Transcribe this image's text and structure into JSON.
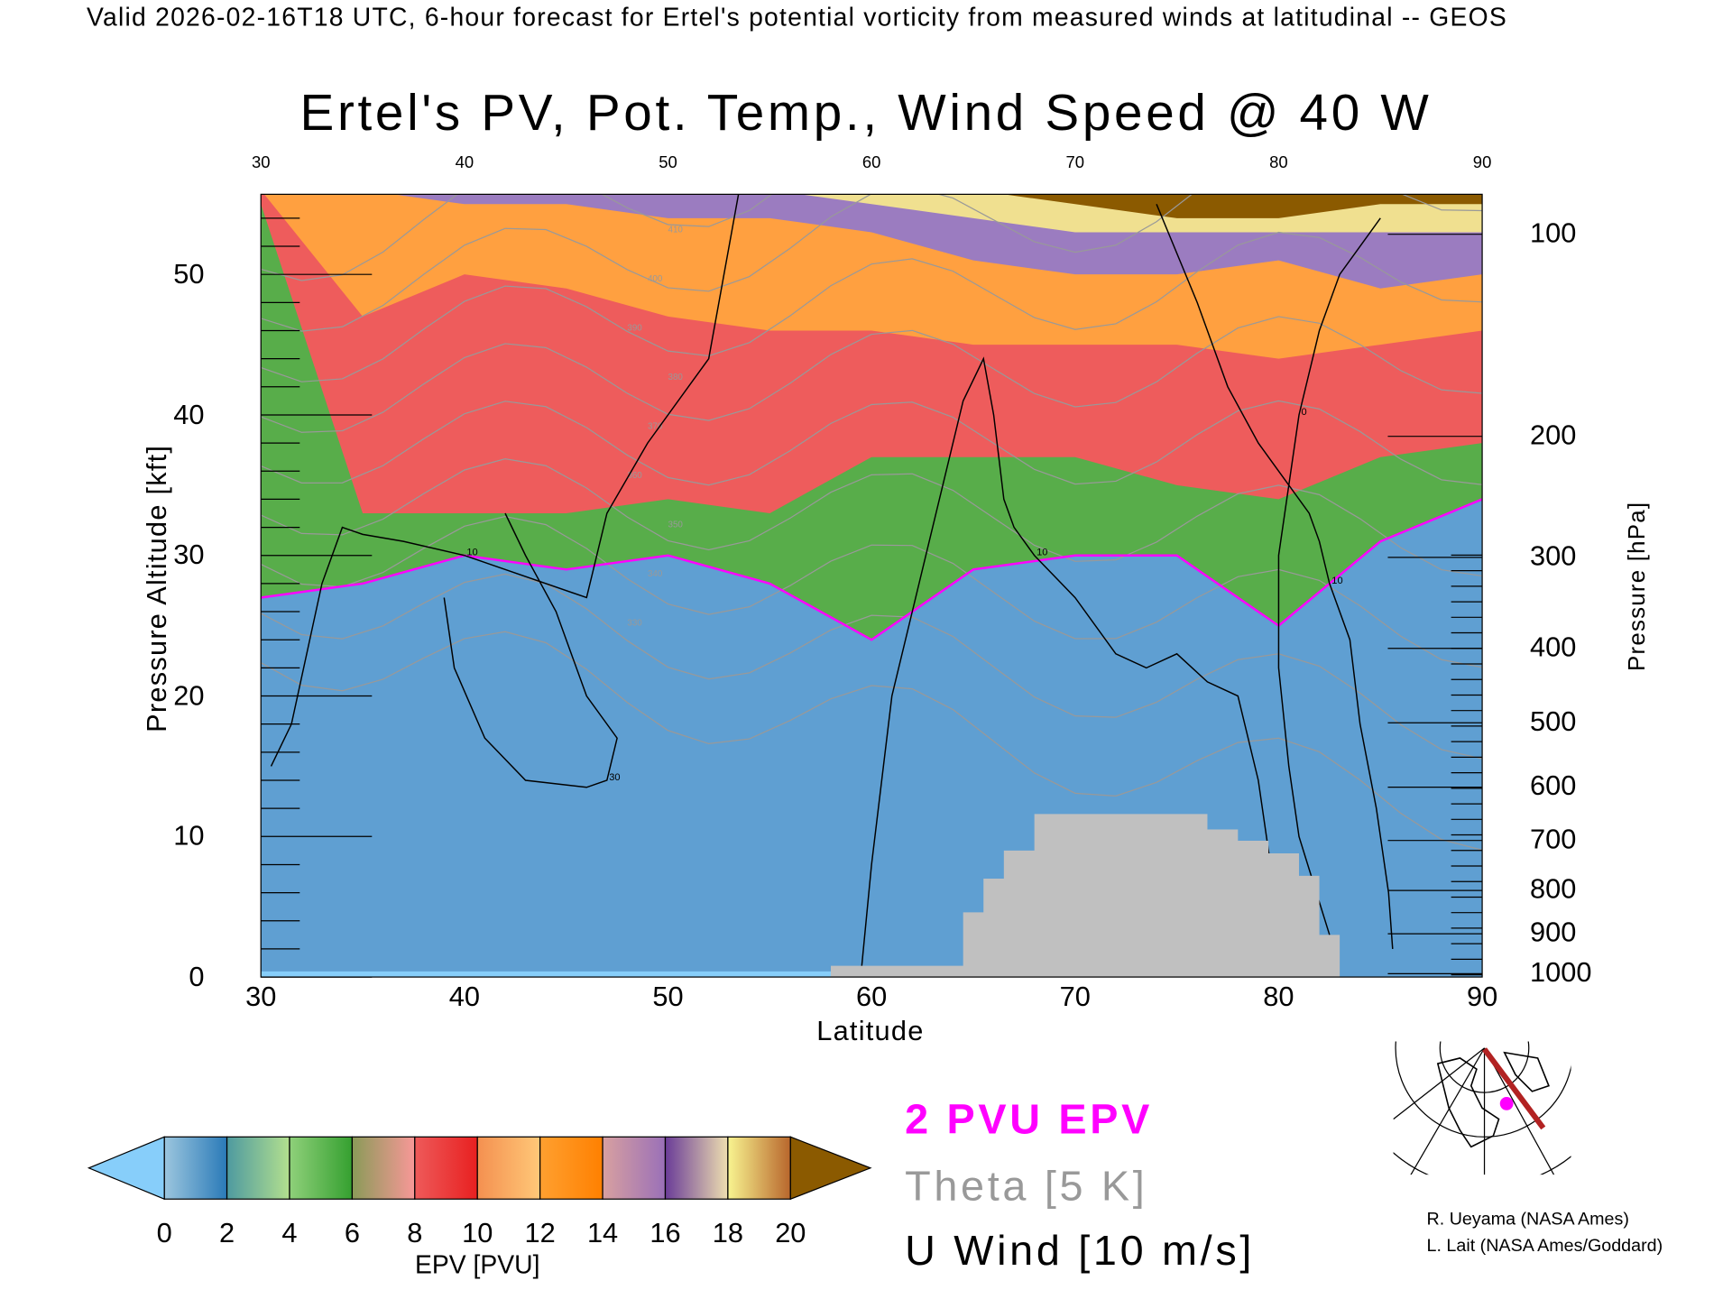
{
  "header": "Valid 2026-02-16T18 UTC, 6-hour forecast for Ertel's potential vorticity from measured winds at latitudinal -- GEOS",
  "legend": {
    "epv": "2 PVU EPV",
    "theta": "Theta [5 K]",
    "wind": "U Wind [10 m/s]"
  },
  "credits": [
    "R. Ueyama (NASA Ames)",
    "L. Lait (NASA Ames/Goddard)"
  ],
  "colors": {
    "pv_contour": "#ff00ff",
    "theta": "#999999",
    "wind": "#000000",
    "terrain": "#c0c0c0",
    "map_track": "#b22222",
    "map_point": "#ff00ff"
  },
  "chart_data": {
    "type": "heatmap",
    "title": "Ertel's PV, Pot. Temp., Wind Speed @ 40 W",
    "xlabel": "Latitude",
    "ylabel": "Pressure Altitude [kft]",
    "ylabel_right": "Pressure [hPa]",
    "xlim": [
      30,
      90
    ],
    "ylim": [
      0,
      55.7
    ],
    "x_ticks": [
      "30",
      "40",
      "50",
      "60",
      "70",
      "80",
      "90"
    ],
    "y_ticks": [
      "0",
      "10",
      "20",
      "30",
      "40",
      "50"
    ],
    "pressure_ticks": [
      "100",
      "200",
      "300",
      "400",
      "500",
      "600",
      "700",
      "800",
      "900",
      "1000"
    ],
    "colorbar": {
      "label": "EPV [PVU]",
      "ticks": [
        "0",
        "2",
        "4",
        "6",
        "8",
        "10",
        "12",
        "14",
        "16",
        "18",
        "20"
      ],
      "under_color": "#87cefa",
      "over_color": "#8b5a00",
      "segments": [
        [
          "#9cc6de",
          "#2a7ab8"
        ],
        [
          "#4e9aa0",
          "#b3e08e"
        ],
        [
          "#8fd07a",
          "#35a030"
        ],
        [
          "#8a9a58",
          "#f89898"
        ],
        [
          "#ee5a5a",
          "#e82020"
        ],
        [
          "#f49050",
          "#ffc878"
        ],
        [
          "#ffa030",
          "#ff8000"
        ],
        [
          "#d8a0a0",
          "#9a70b8"
        ],
        [
          "#6a3c98",
          "#eedfb0"
        ],
        [
          "#f8f490",
          "#b8662c"
        ]
      ]
    },
    "band_latitudes": [
      30,
      35,
      40,
      45,
      50,
      55,
      60,
      65,
      70,
      75,
      80,
      85,
      90
    ],
    "bands": [
      {
        "name": "0-2 PVU",
        "color": "#5f9fd2",
        "top_kft": [
          27,
          28,
          30,
          29,
          30,
          28,
          24,
          29,
          30,
          30,
          25,
          31,
          34
        ]
      },
      {
        "name": "2-6 PVU",
        "color": "#58ad4a",
        "top_kft": [
          55,
          33,
          33,
          33,
          34,
          33,
          37,
          37,
          37,
          35,
          34,
          37,
          38
        ]
      },
      {
        "name": "6-10 PVU",
        "color": "#ee5c5c",
        "top_kft": [
          56,
          47,
          50,
          49,
          47,
          46,
          46,
          45,
          45,
          45,
          44,
          45,
          46
        ]
      },
      {
        "name": "10-14 PVU",
        "color": "#ffa040",
        "top_kft": [
          56,
          56,
          55,
          55,
          54,
          54,
          53,
          51,
          50,
          50,
          51,
          49,
          50
        ]
      },
      {
        "name": "14-18 PVU",
        "color": "#9b7cc0",
        "top_kft": [
          56,
          56,
          56,
          56,
          56,
          56,
          55,
          54,
          53,
          53,
          53,
          53,
          53
        ]
      },
      {
        "name": "18-20 PVU",
        "color": "#f0e090",
        "top_kft": [
          56,
          56,
          56,
          56,
          56,
          56,
          56,
          56,
          55,
          54,
          54,
          55,
          55
        ]
      },
      {
        "name": ">20 PVU",
        "color": "#8b5a00",
        "top_kft": [
          56,
          56,
          56,
          56,
          56,
          56,
          56,
          56,
          56,
          56,
          56,
          56,
          56
        ]
      }
    ],
    "terrain": {
      "lat": [
        58,
        58,
        64.5,
        64.5,
        65.5,
        65.5,
        66.5,
        66.5,
        68,
        68,
        76.5,
        76.5,
        78,
        78,
        79.5,
        79.5,
        81,
        81,
        82,
        82,
        83,
        83
      ],
      "kft": [
        0,
        0.8,
        0.8,
        4.6,
        4.6,
        7,
        7,
        9,
        9,
        11.6,
        11.6,
        10.5,
        10.5,
        9.7,
        9.7,
        8.8,
        8.8,
        7.2,
        7.2,
        3,
        3,
        0
      ]
    },
    "wind_contours": [
      {
        "label": "10",
        "lat": [
          59.5,
          60,
          61,
          63,
          64.5,
          65.5,
          66,
          66.5,
          67,
          68,
          70,
          72,
          73.5,
          75,
          76.5,
          78,
          79,
          80
        ],
        "kft": [
          0.5,
          8,
          20,
          32,
          41,
          44,
          40,
          34,
          32,
          30,
          27,
          23,
          22,
          23,
          21,
          20,
          14,
          4
        ]
      },
      {
        "label": "10",
        "lat": [
          74,
          76,
          77.5,
          79,
          81.5,
          82,
          82.5,
          83.5,
          84,
          84.8,
          85.4,
          85.6
        ],
        "kft": [
          55,
          48,
          42,
          38,
          33,
          31,
          28,
          24,
          18,
          12,
          6,
          2
        ]
      },
      {
        "label": "30",
        "lat": [
          42,
          43,
          44.5,
          46,
          47.5,
          47,
          46,
          43,
          41,
          39.5,
          39
        ],
        "kft": [
          33,
          30,
          26,
          20,
          17,
          14,
          13.5,
          14,
          17,
          22,
          27
        ]
      },
      {
        "label": "10",
        "lat": [
          30.5,
          31.5,
          33,
          34,
          35,
          37,
          40,
          42,
          46,
          47,
          49,
          52,
          53.5
        ],
        "kft": [
          15,
          18,
          28,
          32,
          31.5,
          31,
          30,
          29,
          27,
          33,
          38,
          44,
          56
        ]
      },
      {
        "label": "0",
        "lat": [
          82.5,
          81,
          80.5,
          80,
          80,
          81,
          82,
          83,
          84,
          85
        ],
        "kft": [
          3,
          10,
          15,
          22,
          30,
          40,
          46,
          50,
          52,
          54
        ]
      }
    ],
    "theta_levels_K": [
      "330",
      "340",
      "350",
      "360",
      "370",
      "380",
      "390",
      "400",
      "410"
    ]
  }
}
